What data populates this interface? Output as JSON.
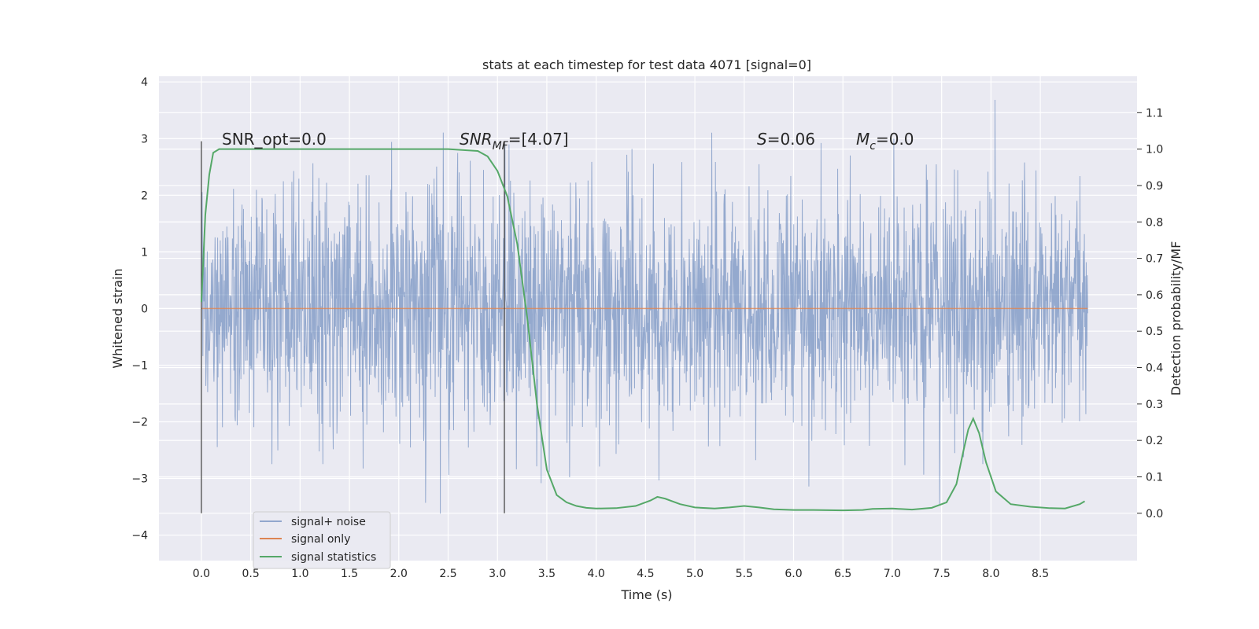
{
  "chart_data": {
    "type": "line",
    "title": "stats at each timestep for test data 4071 [signal=0]",
    "xlabel": "Time (s)",
    "ylabel": "Whitened strain",
    "y2label": "Detection probability/MF",
    "xlim": [
      -0.43,
      9.48
    ],
    "ylim": [
      -4.45,
      4.1
    ],
    "y2lim": [
      -0.13,
      1.2
    ],
    "x_ticks": [
      0.0,
      0.5,
      1.0,
      1.5,
      2.0,
      2.5,
      3.0,
      3.5,
      4.0,
      4.5,
      5.0,
      5.5,
      6.0,
      6.5,
      7.0,
      7.5,
      8.0,
      8.5
    ],
    "x_tick_labels": [
      "0.0",
      "0.5",
      "1.0",
      "1.5",
      "2.0",
      "2.5",
      "3.0",
      "3.5",
      "4.0",
      "4.5",
      "5.0",
      "5.5",
      "6.0",
      "6.5",
      "7.0",
      "7.5",
      "8.0",
      "8.5"
    ],
    "y_ticks": [
      -4,
      -3,
      -2,
      -1,
      0,
      1,
      2,
      3,
      4
    ],
    "y_tick_labels": [
      "−4",
      "−3",
      "−2",
      "−1",
      "0",
      "1",
      "2",
      "3",
      "4"
    ],
    "y2_ticks": [
      0.0,
      0.1,
      0.2,
      0.3,
      0.4,
      0.5,
      0.6,
      0.7,
      0.8,
      0.9,
      1.0,
      1.1
    ],
    "y2_tick_labels": [
      "0.0",
      "0.1",
      "0.2",
      "0.3",
      "0.4",
      "0.5",
      "0.6",
      "0.7",
      "0.8",
      "0.9",
      "1.0",
      "1.1"
    ],
    "grid": true,
    "legend_position": "lower-left",
    "annotations": {
      "snr_opt": "SNR_opt=0.0",
      "snr_mf_main": "SNR",
      "snr_mf_sub": "MF",
      "snr_mf_value": "=[4.07]",
      "s_main": "S",
      "s_value": "=0.06",
      "mc_main": "M",
      "mc_sub": "c",
      "mc_value": "=0.0"
    },
    "vlines_x": [
      0.0,
      3.07
    ],
    "series": [
      {
        "name": "signal+ noise",
        "color": "#4c72b0",
        "axis": "left",
        "style": "noise",
        "x_range": [
          0.0,
          8.98
        ],
        "envelope": [
          {
            "t": 0.0,
            "top": 2.7,
            "bottom": -2.9
          },
          {
            "t": 0.6,
            "top": 3.3,
            "bottom": -3.6
          },
          {
            "t": 1.8,
            "top": 3.6,
            "bottom": -3.0
          },
          {
            "t": 2.8,
            "top": 3.0,
            "bottom": -4.0
          },
          {
            "t": 3.5,
            "top": 3.0,
            "bottom": -3.0
          },
          {
            "t": 4.6,
            "top": 3.0,
            "bottom": -3.5
          },
          {
            "t": 5.4,
            "top": 3.7,
            "bottom": -3.0
          },
          {
            "t": 7.0,
            "top": 3.2,
            "bottom": -3.3
          },
          {
            "t": 7.55,
            "top": 3.0,
            "bottom": -3.65
          },
          {
            "t": 8.0,
            "top": 3.7,
            "bottom": -3.1
          },
          {
            "t": 8.98,
            "top": 3.3,
            "bottom": -2.5
          }
        ]
      },
      {
        "name": "signal only",
        "color": "#dd8452",
        "axis": "left",
        "x": [
          0.0,
          8.98
        ],
        "y": [
          0.0,
          0.0
        ]
      },
      {
        "name": "signal statistics",
        "color": "#55a868",
        "axis": "right",
        "x": [
          0.0,
          0.04,
          0.08,
          0.12,
          0.18,
          0.3,
          0.6,
          1.0,
          1.5,
          2.0,
          2.5,
          2.8,
          2.9,
          3.0,
          3.1,
          3.2,
          3.3,
          3.4,
          3.5,
          3.6,
          3.7,
          3.8,
          3.9,
          4.0,
          4.2,
          4.4,
          4.55,
          4.62,
          4.7,
          4.85,
          5.0,
          5.2,
          5.35,
          5.5,
          5.65,
          5.8,
          6.0,
          6.2,
          6.5,
          6.7,
          6.8,
          7.0,
          7.2,
          7.4,
          7.55,
          7.65,
          7.72,
          7.77,
          7.82,
          7.88,
          7.95,
          8.05,
          8.2,
          8.4,
          8.6,
          8.75,
          8.9,
          8.95
        ],
        "y": [
          0.58,
          0.82,
          0.93,
          0.99,
          1.0,
          1.0,
          1.0,
          1.0,
          1.0,
          1.0,
          1.0,
          0.995,
          0.98,
          0.94,
          0.87,
          0.74,
          0.54,
          0.3,
          0.12,
          0.05,
          0.03,
          0.02,
          0.015,
          0.013,
          0.014,
          0.02,
          0.035,
          0.045,
          0.04,
          0.025,
          0.016,
          0.013,
          0.016,
          0.02,
          0.016,
          0.011,
          0.009,
          0.009,
          0.008,
          0.009,
          0.012,
          0.013,
          0.01,
          0.015,
          0.03,
          0.08,
          0.17,
          0.23,
          0.26,
          0.22,
          0.14,
          0.06,
          0.025,
          0.018,
          0.014,
          0.013,
          0.025,
          0.033
        ]
      }
    ]
  }
}
